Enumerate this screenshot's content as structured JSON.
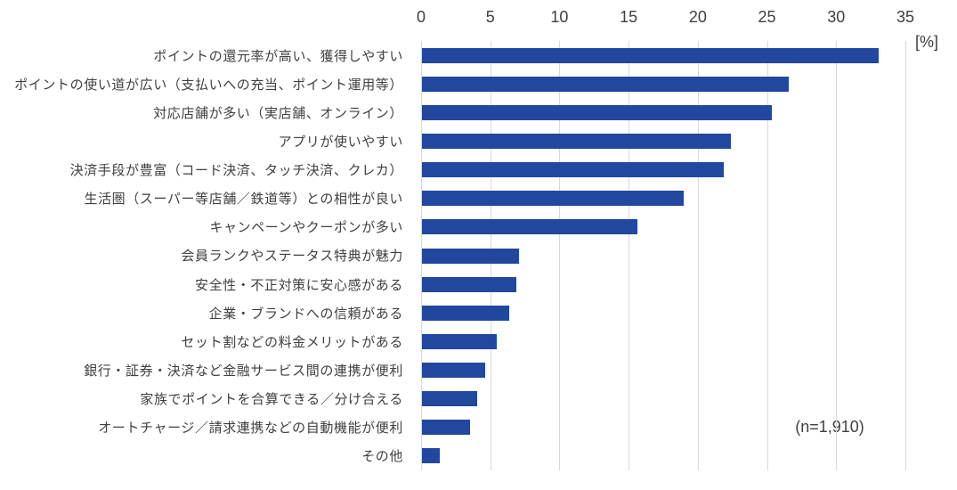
{
  "chart_data": {
    "type": "bar",
    "orientation": "horizontal",
    "title": "",
    "unit_label": "[%]",
    "note": "(n=1,910)",
    "xlim": [
      0,
      35
    ],
    "xticks": [
      0,
      5,
      10,
      15,
      20,
      25,
      30,
      35
    ],
    "grid": true,
    "bar_color": "#21489E",
    "categories": [
      "ポイントの還元率が高い、獲得しやすい",
      "ポイントの使い道が広い（支払いへの充当、ポイント運用等）",
      "対応店舗が多い（実店舗、オンライン）",
      "アプリが使いやすい",
      "決済手段が豊富（コード決済、タッチ決済、クレカ）",
      "生活圏（スーパー等店舗／鉄道等）との相性が良い",
      "キャンペーンやクーポンが多い",
      "会員ランクやステータス特典が魅力",
      "安全性・不正対策に安心感がある",
      "企業・ブランドへの信頼がある",
      "セット割などの料金メリットがある",
      "銀行・証券・決済など金融サービス間の連携が便利",
      "家族でポイントを合算できる／分け合える",
      "オートチャージ／請求連携などの自動機能が便利",
      "その他"
    ],
    "values": [
      33.0,
      26.5,
      25.3,
      22.3,
      21.8,
      18.9,
      15.6,
      7.0,
      6.8,
      6.3,
      5.4,
      4.6,
      4.0,
      3.5,
      1.3
    ]
  }
}
